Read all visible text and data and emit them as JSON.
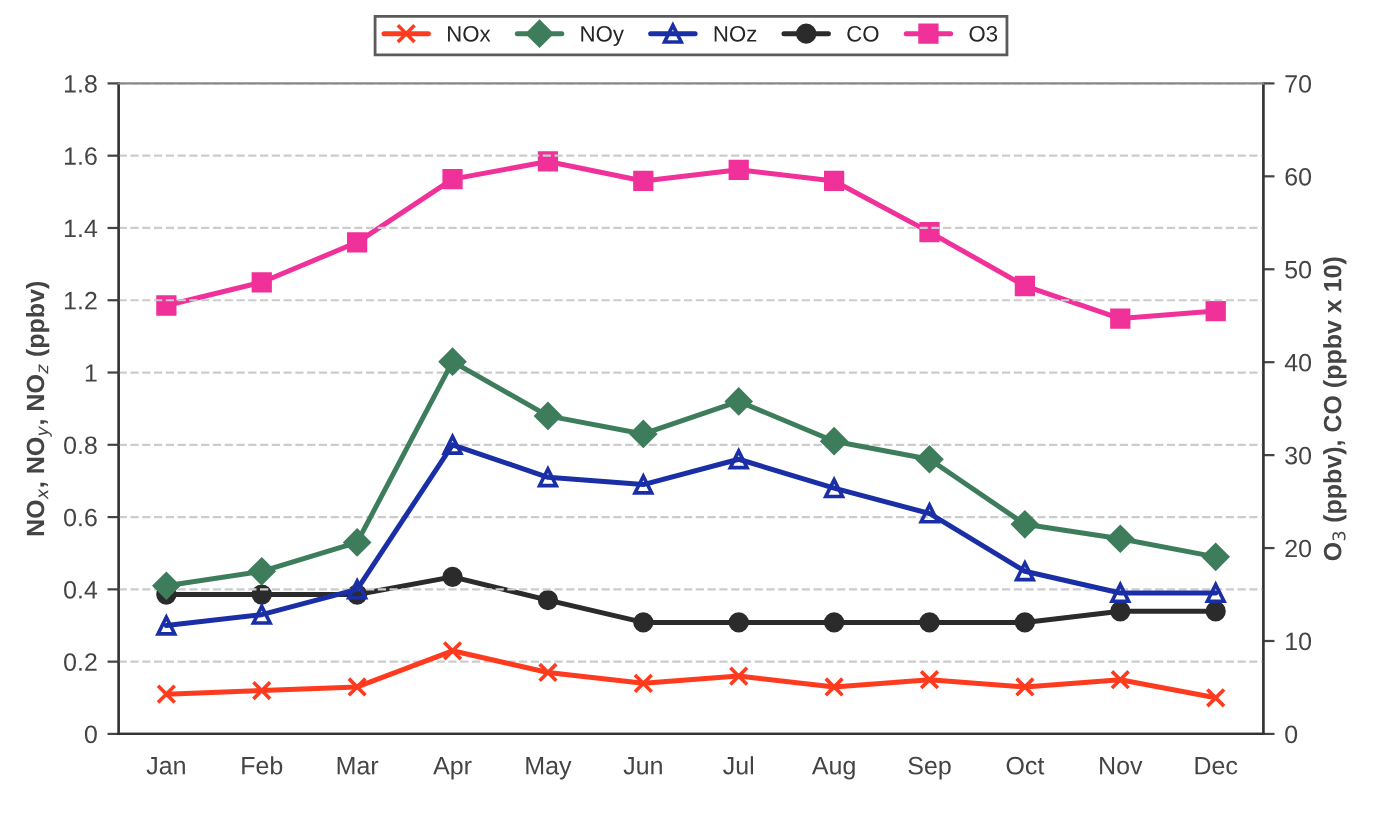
{
  "chart_data": {
    "type": "line",
    "categories": [
      "Jan",
      "Feb",
      "Mar",
      "Apr",
      "May",
      "Jun",
      "Jul",
      "Aug",
      "Sep",
      "Oct",
      "Nov",
      "Dec"
    ],
    "series": [
      {
        "name": "NOx",
        "color": "#ff3b1f",
        "marker": "cross",
        "values": [
          0.11,
          0.12,
          0.13,
          0.23,
          0.17,
          0.14,
          0.16,
          0.13,
          0.15,
          0.13,
          0.15,
          0.1
        ]
      },
      {
        "name": "NOy",
        "color": "#3e7d5c",
        "marker": "diamond",
        "values": [
          0.41,
          0.45,
          0.53,
          1.03,
          0.88,
          0.83,
          0.92,
          0.81,
          0.76,
          0.58,
          0.54,
          0.49
        ]
      },
      {
        "name": "NOz",
        "color": "#1a2ea6",
        "marker": "triangle",
        "values": [
          0.3,
          0.33,
          0.4,
          0.8,
          0.71,
          0.69,
          0.76,
          0.68,
          0.61,
          0.45,
          0.39,
          0.39
        ]
      },
      {
        "name": "CO",
        "color": "#2b2b2b",
        "marker": "circle",
        "axis": "y2",
        "values": [
          15.0,
          15.0,
          15.0,
          16.9,
          14.4,
          12.0,
          12.0,
          12.0,
          12.0,
          12.0,
          13.2,
          13.2
        ]
      },
      {
        "name": "O3",
        "color": "#f0319a",
        "marker": "square",
        "axis": "y2",
        "values": [
          46.1,
          48.6,
          52.9,
          59.7,
          61.6,
          59.5,
          60.7,
          59.5,
          54.0,
          48.2,
          44.7,
          45.5
        ]
      }
    ],
    "ylabel": "NO$_{x}$, NO$_{y}$, NO$_{z}$ (ppbv)",
    "y2label": "O$_{3}$ (ppbv), CO (ppbv x 10)",
    "ylim": [
      0,
      1.8
    ],
    "yticks": [
      0,
      0.2,
      0.4,
      0.6,
      0.8,
      {
        "value": 1,
        "label": "1"
      },
      1.2,
      1.4,
      1.6,
      1.8
    ],
    "y2lim": [
      0,
      70
    ],
    "y2ticks": [
      0,
      10,
      20,
      30,
      40,
      50,
      60,
      70
    ],
    "grid": true,
    "legend": "top",
    "line_style": "solid"
  }
}
